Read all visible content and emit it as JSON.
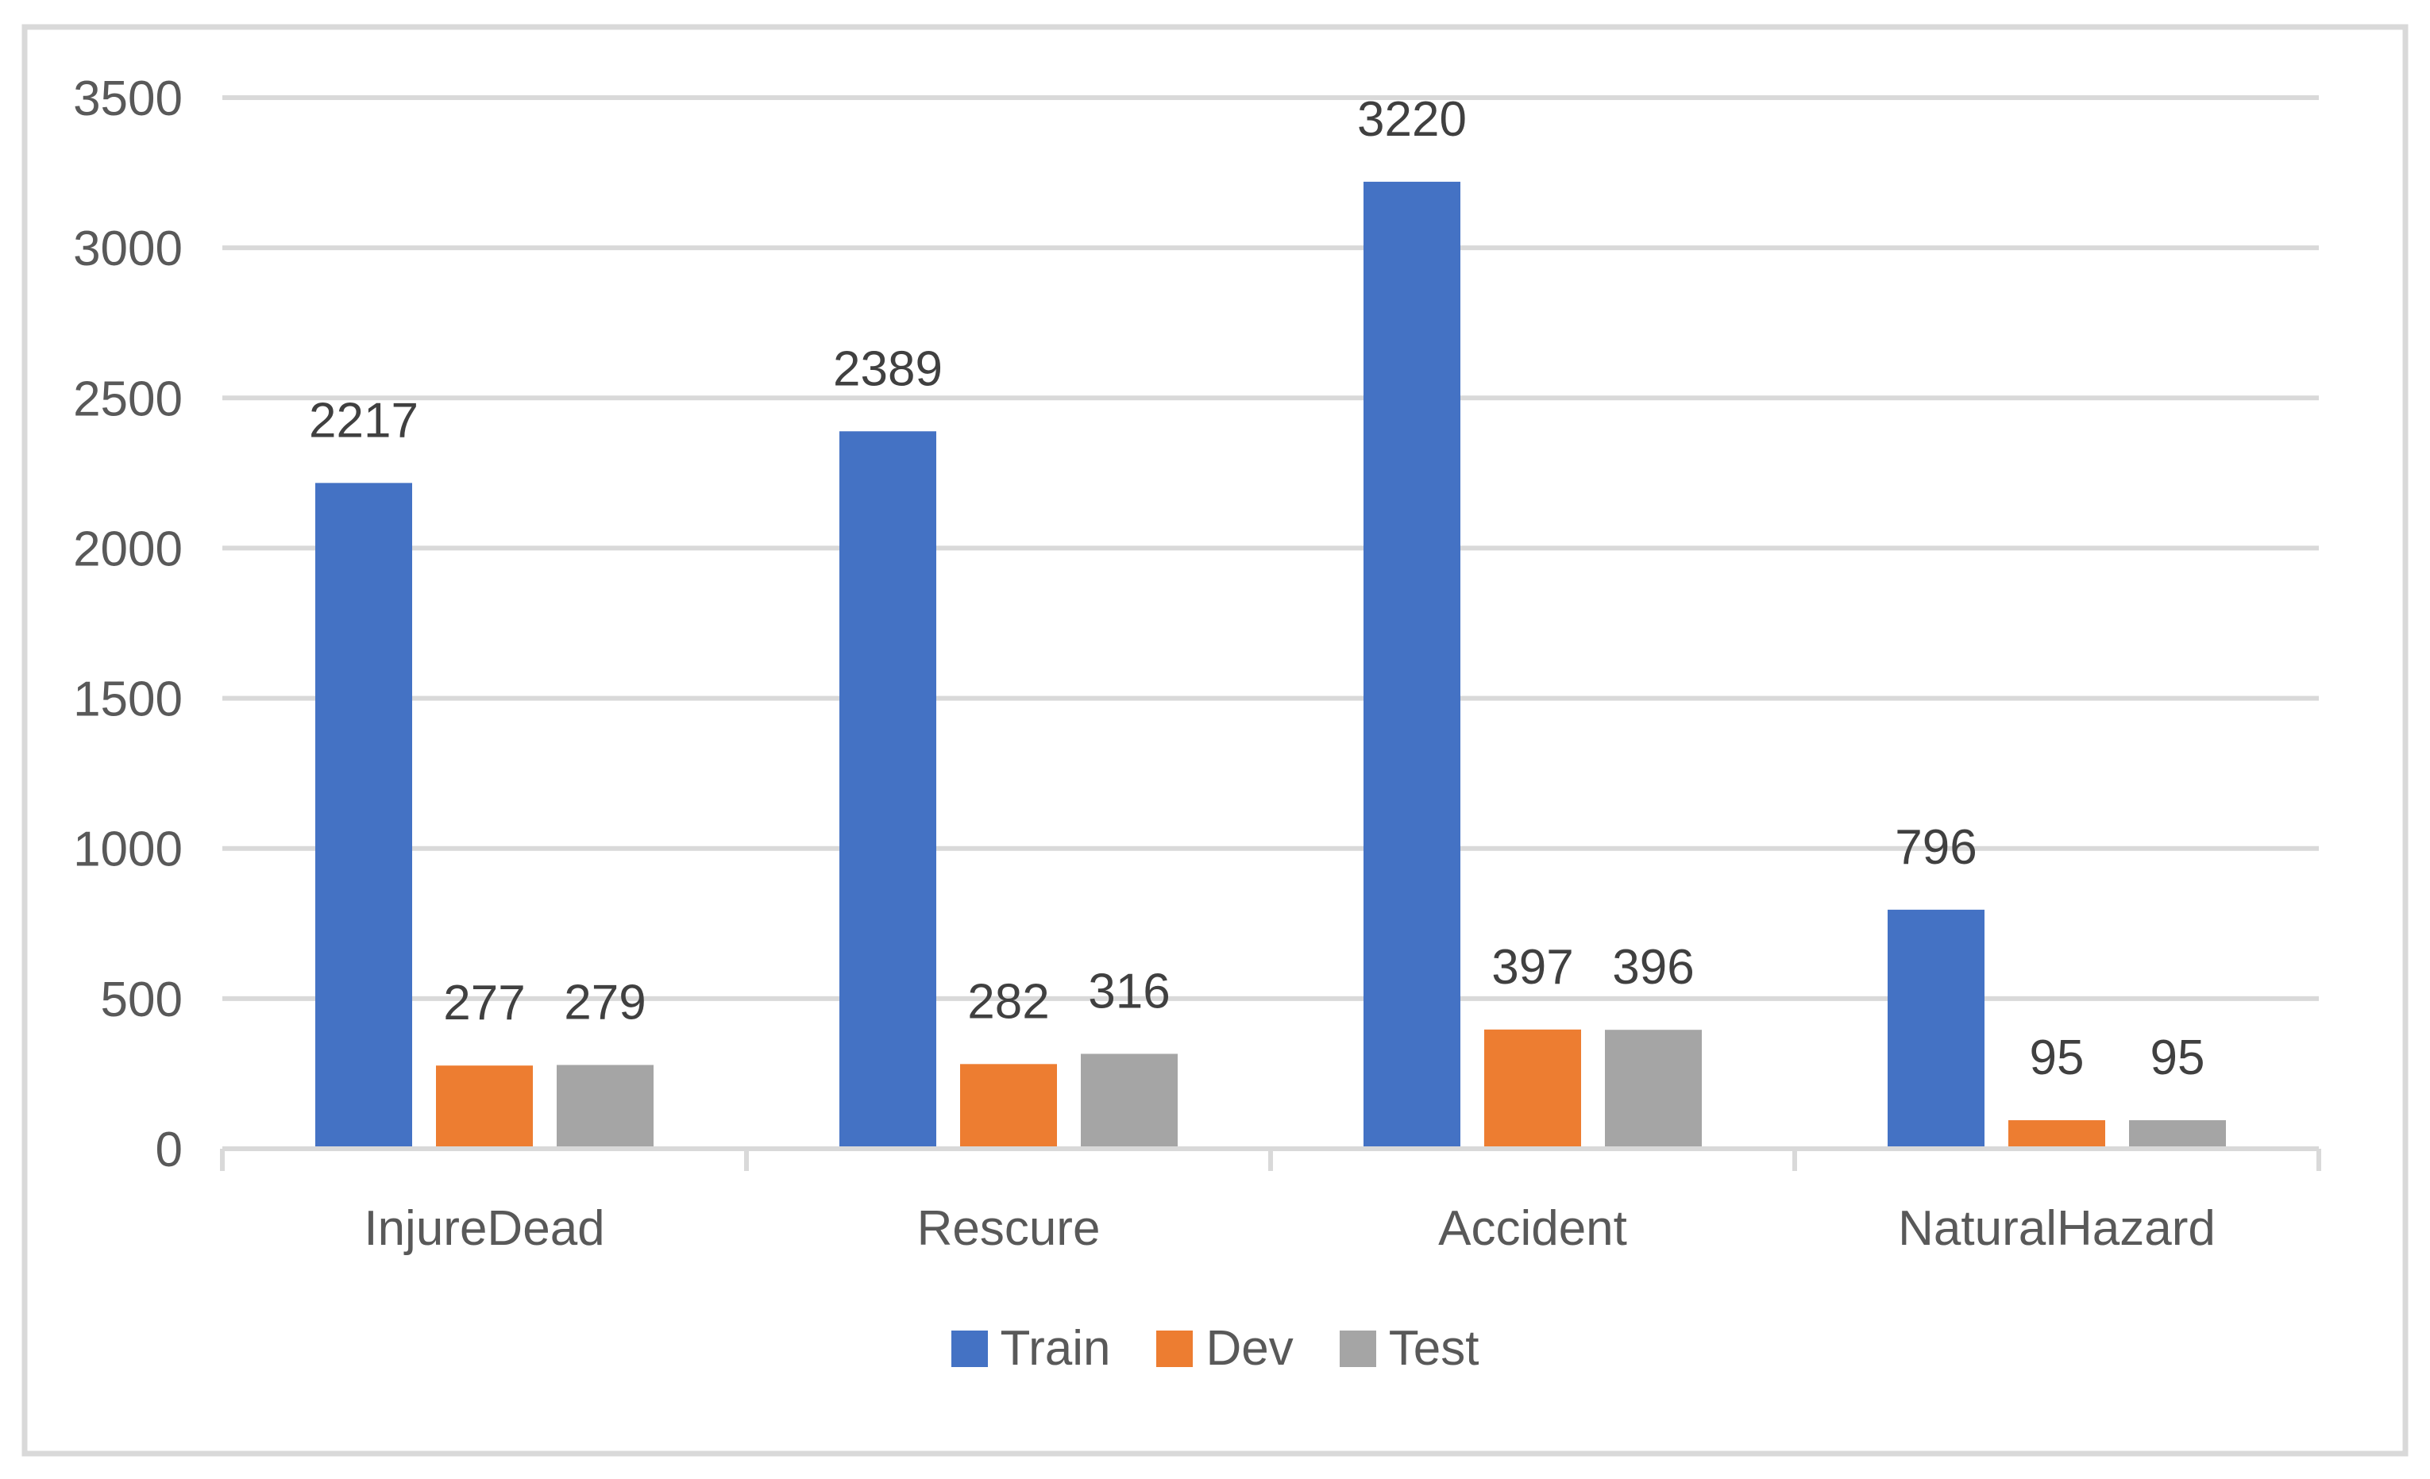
{
  "chart_data": {
    "type": "bar",
    "categories": [
      "InjureDead",
      "Rescure",
      "Accident",
      "NaturalHazard"
    ],
    "series": [
      {
        "name": "Train",
        "color": "#4472C4",
        "values": [
          2217,
          2389,
          3220,
          796
        ]
      },
      {
        "name": "Dev",
        "color": "#ED7D31",
        "values": [
          277,
          282,
          397,
          95
        ]
      },
      {
        "name": "Test",
        "color": "#A5A5A5",
        "values": [
          279,
          316,
          396,
          95
        ]
      }
    ],
    "yticks": [
      0,
      500,
      1000,
      1500,
      2000,
      2500,
      3000,
      3500
    ],
    "ylim": [
      0,
      3500
    ],
    "grid": true,
    "data_labels": true,
    "legend_position": "bottom"
  },
  "colors": {
    "grid": "#D9D9D9",
    "frame": "#D9D9D9",
    "axis_text": "#595959",
    "data_label_text": "#404040",
    "background": "#FFFFFF"
  }
}
